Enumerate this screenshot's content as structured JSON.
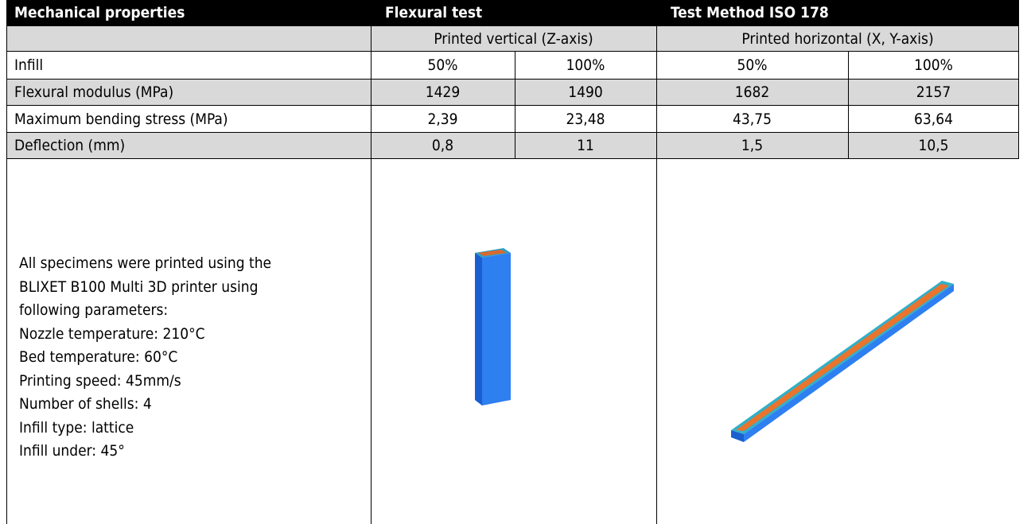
{
  "header": {
    "title": "Mechanical properties",
    "test": "Flexural test",
    "method": "Test Method ISO 178"
  },
  "subheader": [
    "Printed vertical (Z-axis)",
    "Printed horizontal (X, Y-axis)"
  ],
  "rows": [
    [
      "Infill",
      "50%",
      "100%",
      "50%",
      "100%"
    ],
    [
      "Flexural modulus (MPa)",
      "1429",
      "1490",
      "1682",
      "2157"
    ],
    [
      "Maximum bending stress (MPa)",
      "2,39",
      "23,48",
      "43,75",
      "63,64"
    ],
    [
      "Deflection (mm)",
      "0,8",
      "11",
      "1,5",
      "10,5"
    ]
  ],
  "notes": [
    "All specimens were printed using the",
    "BLIXET B100 Multi 3D printer using",
    "following parameters:",
    "Nozzle temperature: 210°C",
    "Bed temperature: 60°C",
    "Printing speed: 45mm/s",
    "Number of shells: 4",
    "Infill type: lattice",
    "Infill under: 45°"
  ]
}
